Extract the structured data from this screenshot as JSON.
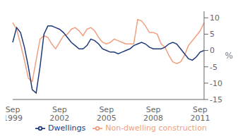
{
  "chart_data": {
    "type": "line",
    "title": "",
    "y_label": "%",
    "categories": [
      "Sep\n1999",
      null,
      null,
      null,
      null,
      null,
      null,
      null,
      null,
      null,
      null,
      null,
      "Sep\n2002",
      null,
      null,
      null,
      null,
      null,
      null,
      null,
      null,
      null,
      null,
      null,
      "Sep\n2005",
      null,
      null,
      null,
      null,
      null,
      null,
      null,
      null,
      null,
      null,
      null,
      "Sep\n2008",
      null,
      null,
      null,
      null,
      null,
      null,
      null,
      null,
      null,
      null,
      null,
      "Sep\n2011",
      null
    ],
    "series": [
      {
        "name": "Non-dwelling construction",
        "color": "#f0a080",
        "values": [
          8.5,
          6.5,
          2.0,
          -3.0,
          -8.5,
          -9.5,
          -3.0,
          3.5,
          4.5,
          4.0,
          2.0,
          0.5,
          2.5,
          4.5,
          5.0,
          6.5,
          7.0,
          6.0,
          4.5,
          6.5,
          7.0,
          6.0,
          4.0,
          2.5,
          2.0,
          2.5,
          3.5,
          3.0,
          2.5,
          2.0,
          2.0,
          2.0,
          9.5,
          9.0,
          7.5,
          5.5,
          5.5,
          5.0,
          2.0,
          1.0,
          -1.5,
          -3.5,
          -4.0,
          -3.5,
          -1.5,
          1.5,
          3.0,
          4.5,
          6.0,
          8.5
        ]
      },
      {
        "name": "Dwellings",
        "color": "#1f3a7a",
        "values": [
          2.5,
          7.0,
          5.5,
          1.0,
          -5.0,
          -12.0,
          -13.0,
          -5.0,
          5.0,
          7.5,
          7.5,
          7.0,
          6.5,
          5.5,
          4.0,
          2.5,
          1.5,
          0.5,
          0.5,
          1.5,
          3.5,
          3.0,
          2.0,
          0.5,
          0.0,
          -0.5,
          -0.5,
          -1.0,
          -0.5,
          0.0,
          0.5,
          1.5,
          2.0,
          2.5,
          2.0,
          1.0,
          0.5,
          0.5,
          0.5,
          1.0,
          2.0,
          2.5,
          2.0,
          0.5,
          -1.0,
          -2.5,
          -3.0,
          -2.0,
          -0.5,
          0.0
        ]
      }
    ],
    "ylim": [
      -15,
      12
    ],
    "yticks": [
      -15,
      -10,
      -5,
      0,
      5,
      10
    ],
    "grid": false,
    "legend": "bottom"
  }
}
